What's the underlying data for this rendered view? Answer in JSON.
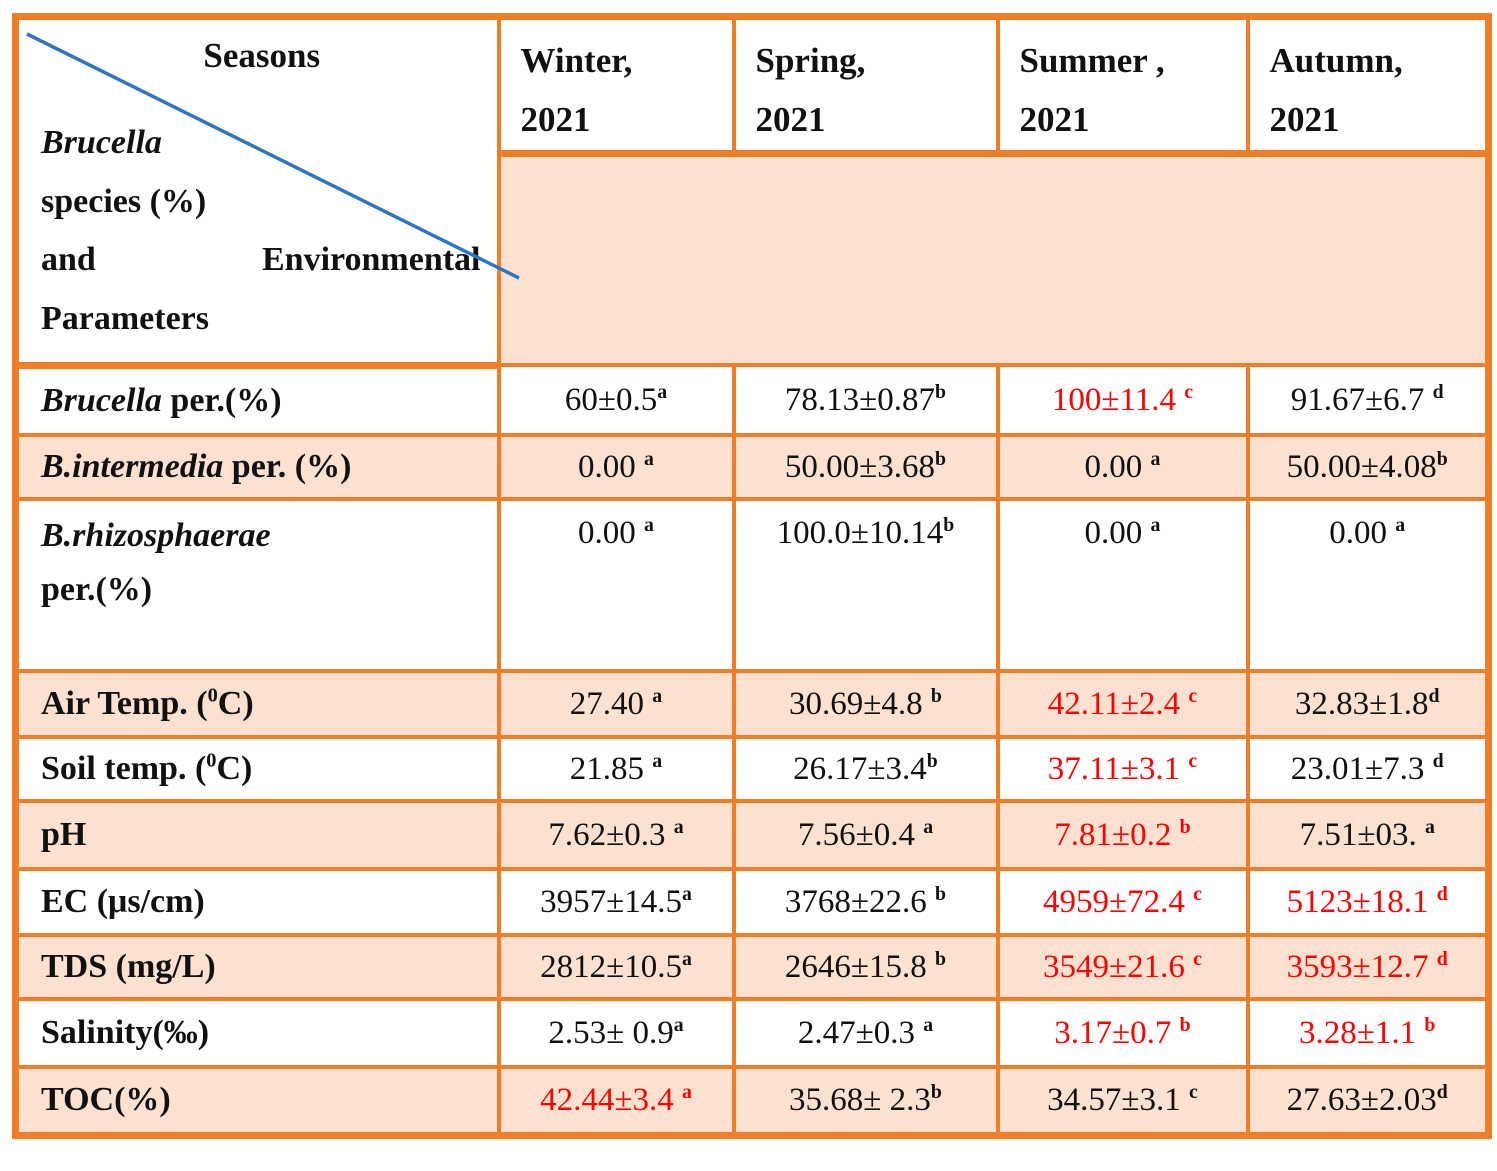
{
  "table": {
    "colors": {
      "border": "#F07E28",
      "row_shade": "#FCE1D0",
      "highlight_text": "#FF0000",
      "diagonal_line": "#2E77C0",
      "text": "#111111"
    },
    "corner": {
      "seasons_label": "Seasons",
      "line_species_genus": "Brucella",
      "line_species_rest": "species (%)",
      "line_and": "and",
      "line_environmental": "Environmental",
      "line_parameters": "Parameters"
    },
    "header": {
      "cols": [
        {
          "l1": "Winter,",
          "l2": "2021"
        },
        {
          "l1": "Spring,",
          "l2": "2021"
        },
        {
          "l1": "Summer ,",
          "l2": "2021"
        },
        {
          "l1": "Autumn,",
          "l2": "2021"
        }
      ]
    },
    "rows": [
      {
        "shaded": false,
        "tall": false,
        "label": [
          {
            "t": "Brucella",
            "i": true
          },
          {
            "t": " per.(%)"
          }
        ],
        "cells": [
          {
            "v": "60±0.5",
            "s": "a",
            "red": false
          },
          {
            "v": "78.13±0.87",
            "s": "b",
            "red": false
          },
          {
            "v": "100±11.4 ",
            "s": "c",
            "red": true
          },
          {
            "v": "91.67±6.7 ",
            "s": "d",
            "red": false
          }
        ]
      },
      {
        "shaded": true,
        "tall": false,
        "label": [
          {
            "t": "B.intermedia",
            "i": true
          },
          {
            "t": " per. (%)"
          }
        ],
        "cells": [
          {
            "v": "0.00 ",
            "s": "a",
            "red": false
          },
          {
            "v": "50.00±3.68",
            "s": "b",
            "red": false
          },
          {
            "v": "0.00 ",
            "s": "a",
            "red": false
          },
          {
            "v": "50.00±4.08",
            "s": "b",
            "red": false
          }
        ]
      },
      {
        "shaded": false,
        "tall": true,
        "label": [
          {
            "t": "B.rhizosphaerae",
            "i": true
          },
          {
            "br": true
          },
          {
            "t": "per.(%)"
          }
        ],
        "cells": [
          {
            "v": "0.00 ",
            "s": "a",
            "red": false
          },
          {
            "v": "100.0±10.14",
            "s": "b",
            "red": false
          },
          {
            "v": "0.00 ",
            "s": "a",
            "red": false
          },
          {
            "v": "0.00 ",
            "s": "a",
            "red": false
          }
        ]
      },
      {
        "shaded": true,
        "tall": false,
        "label": [
          {
            "t": "Air Temp. ("
          },
          {
            "t": "0",
            "sup": true
          },
          {
            "t": "C)"
          }
        ],
        "cells": [
          {
            "v": "27.40 ",
            "s": "a",
            "red": false
          },
          {
            "v": "30.69±4.8 ",
            "s": "b",
            "red": false
          },
          {
            "v": "42.11±2.4 ",
            "s": "c",
            "red": true
          },
          {
            "v": "32.83±1.8",
            "s": "d",
            "red": false
          }
        ]
      },
      {
        "shaded": false,
        "tall": false,
        "label": [
          {
            "t": "Soil temp. ("
          },
          {
            "t": "0",
            "sup": true
          },
          {
            "t": "C)"
          }
        ],
        "cells": [
          {
            "v": "21.85 ",
            "s": "a",
            "red": false
          },
          {
            "v": "26.17±3.4",
            "s": "b",
            "red": false
          },
          {
            "v": "37.11±3.1 ",
            "s": "c",
            "red": true
          },
          {
            "v": "23.01±7.3 ",
            "s": "d",
            "red": false
          }
        ]
      },
      {
        "shaded": true,
        "tall": false,
        "label": [
          {
            "t": "pH"
          }
        ],
        "cells": [
          {
            "v": "7.62±0.3 ",
            "s": "a",
            "red": false
          },
          {
            "v": "7.56±0.4 ",
            "s": "a",
            "red": false
          },
          {
            "v": "7.81±0.2 ",
            "s": "b",
            "red": true
          },
          {
            "v": "7.51±03. ",
            "s": "a",
            "red": false
          }
        ]
      },
      {
        "shaded": false,
        "tall": false,
        "label": [
          {
            "t": "EC (μs/cm)"
          }
        ],
        "cells": [
          {
            "v": "3957±14.5",
            "s": "a",
            "red": false
          },
          {
            "v": "3768±22.6 ",
            "s": "b",
            "red": false
          },
          {
            "v": "4959±72.4 ",
            "s": "c",
            "red": true
          },
          {
            "v": "5123±18.1 ",
            "s": "d",
            "red": true
          }
        ]
      },
      {
        "shaded": true,
        "tall": false,
        "label": [
          {
            "t": "TDS (mg/L)"
          }
        ],
        "cells": [
          {
            "v": "2812±10.5",
            "s": "a",
            "red": false
          },
          {
            "v": "2646±15.8 ",
            "s": "b",
            "red": false
          },
          {
            "v": "3549±21.6 ",
            "s": "c",
            "red": true
          },
          {
            "v": "3593±12.7 ",
            "s": "d",
            "red": true
          }
        ]
      },
      {
        "shaded": false,
        "tall": false,
        "label": [
          {
            "t": "Salinity(‰)"
          }
        ],
        "cells": [
          {
            "v": "2.53± 0.9",
            "s": "a",
            "red": false
          },
          {
            "v": "2.47±0.3 ",
            "s": "a",
            "red": false
          },
          {
            "v": "3.17±0.7 ",
            "s": "b",
            "red": true
          },
          {
            "v": "3.28±1.1 ",
            "s": "b",
            "red": true
          }
        ]
      },
      {
        "shaded": true,
        "tall": false,
        "label": [
          {
            "t": "TOC(%)"
          }
        ],
        "cells": [
          {
            "v": "42.44±3.4 ",
            "s": "a",
            "red": true
          },
          {
            "v": "35.68± 2.3",
            "s": "b",
            "red": false
          },
          {
            "v": "34.57±3.1 ",
            "s": "c",
            "red": false
          },
          {
            "v": "27.63±2.03",
            "s": "d",
            "red": false
          }
        ]
      }
    ]
  }
}
